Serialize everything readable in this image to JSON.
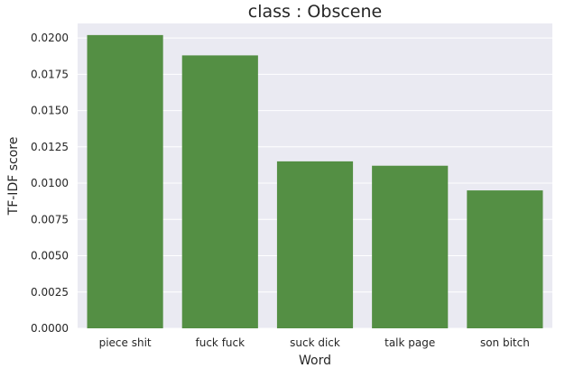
{
  "chart_data": {
    "type": "bar",
    "title": "class : Obscene",
    "xlabel": "Word",
    "ylabel": "TF-IDF score",
    "categories": [
      "piece shit",
      "fuck fuck",
      "suck dick",
      "talk page",
      "son bitch"
    ],
    "values": [
      0.0202,
      0.0188,
      0.0115,
      0.0112,
      0.0095
    ],
    "ylim": [
      0,
      0.021
    ],
    "yticks": [
      "0.0000",
      "0.0025",
      "0.0050",
      "0.0075",
      "0.0100",
      "0.0125",
      "0.0150",
      "0.0175",
      "0.0200"
    ],
    "grid": true,
    "background_color": "#eaeaf2",
    "bar_color": "#548f44"
  }
}
